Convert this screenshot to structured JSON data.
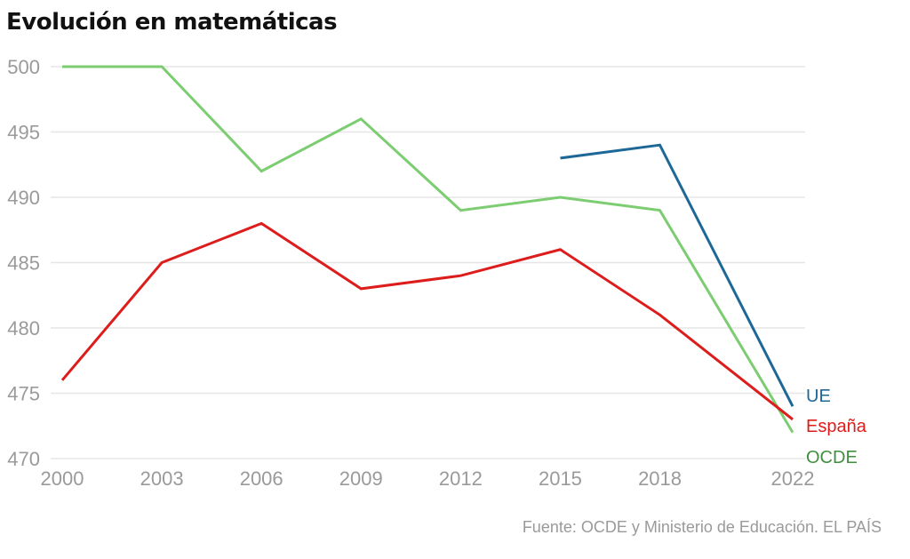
{
  "header": {
    "title": "Evolución en matemáticas"
  },
  "footer": {
    "source": "Fuente: OCDE y Ministerio de Educación. EL PAÍS"
  },
  "chart_data": {
    "type": "line",
    "title": "Evolución en matemáticas",
    "xlabel": "",
    "ylabel": "",
    "x": [
      2000,
      2003,
      2006,
      2009,
      2012,
      2015,
      2018,
      2022
    ],
    "x_tick_labels": [
      "2000",
      "2003",
      "2006",
      "2009",
      "2012",
      "2015",
      "2018",
      "2022"
    ],
    "y_ticks": [
      470,
      475,
      480,
      485,
      490,
      495,
      500
    ],
    "y_tick_labels": [
      "470",
      "475",
      "480",
      "485",
      "490",
      "495",
      "500"
    ],
    "ylim": [
      470,
      500
    ],
    "xlim": [
      2000,
      2022
    ],
    "grid": "horizontal",
    "legend": "inline-right-end",
    "series": [
      {
        "name": "UE",
        "color": "#1d6896",
        "label_color": "#1d6896",
        "points": [
          [
            2015,
            493
          ],
          [
            2018,
            494
          ],
          [
            2022,
            474
          ]
        ]
      },
      {
        "name": "España",
        "color": "#dd1c1c",
        "label_color": "#dd1c1c",
        "points": [
          [
            2000,
            476
          ],
          [
            2003,
            485
          ],
          [
            2006,
            488
          ],
          [
            2009,
            483
          ],
          [
            2012,
            484
          ],
          [
            2015,
            486
          ],
          [
            2018,
            481
          ],
          [
            2022,
            473
          ]
        ]
      },
      {
        "name": "OCDE",
        "color": "#7ccd72",
        "label_color": "#3f8f3f",
        "points": [
          [
            2000,
            500
          ],
          [
            2003,
            500
          ],
          [
            2006,
            492
          ],
          [
            2009,
            496
          ],
          [
            2012,
            489
          ],
          [
            2015,
            490
          ],
          [
            2018,
            489
          ],
          [
            2022,
            472
          ]
        ]
      }
    ]
  }
}
